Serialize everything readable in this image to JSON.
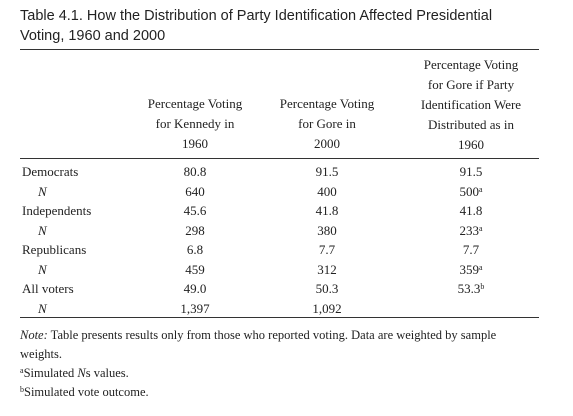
{
  "title": "Table 4.1. How the Distribution of Party Identification Affected Presidential\nVoting, 1960 and 2000",
  "columns": [
    "Percentage Voting\nfor Kennedy in\n1960",
    "Percentage Voting\nfor Gore in\n2000",
    "Percentage Voting\nfor Gore if Party\nIdentification Were\nDistributed as in\n1960"
  ],
  "rows": [
    {
      "label": "Democrats",
      "n_row": false,
      "c1": "80.8",
      "c2": "91.5",
      "c3": "91.5",
      "c3_sup": ""
    },
    {
      "label": "N",
      "n_row": true,
      "c1": "640",
      "c2": "400",
      "c3": "500",
      "c3_sup": "a"
    },
    {
      "label": "Independents",
      "n_row": false,
      "c1": "45.6",
      "c2": "41.8",
      "c3": "41.8",
      "c3_sup": ""
    },
    {
      "label": "N",
      "n_row": true,
      "c1": "298",
      "c2": "380",
      "c3": "233",
      "c3_sup": "a"
    },
    {
      "label": "Republicans",
      "n_row": false,
      "c1": "6.8",
      "c2": "7.7",
      "c3": "7.7",
      "c3_sup": ""
    },
    {
      "label": "N",
      "n_row": true,
      "c1": "459",
      "c2": "312",
      "c3": "359",
      "c3_sup": "a"
    },
    {
      "label": "All voters",
      "n_row": false,
      "c1": "49.0",
      "c2": "50.3",
      "c3": "53.3",
      "c3_sup": "b"
    },
    {
      "label": "N",
      "n_row": true,
      "c1": "1,397",
      "c2": "1,092",
      "c3": "",
      "c3_sup": ""
    }
  ],
  "notes": {
    "note_label": "Note:",
    "note_text": " Table presents results only from those who reported voting. Data are weighted by sample weights.",
    "footnote_a_mark": "a",
    "footnote_a_text_pre": "Simulated ",
    "footnote_a_italic": "N",
    "footnote_a_text_post": "s values.",
    "footnote_b_mark": "b",
    "footnote_b_text": "Simulated vote outcome."
  }
}
